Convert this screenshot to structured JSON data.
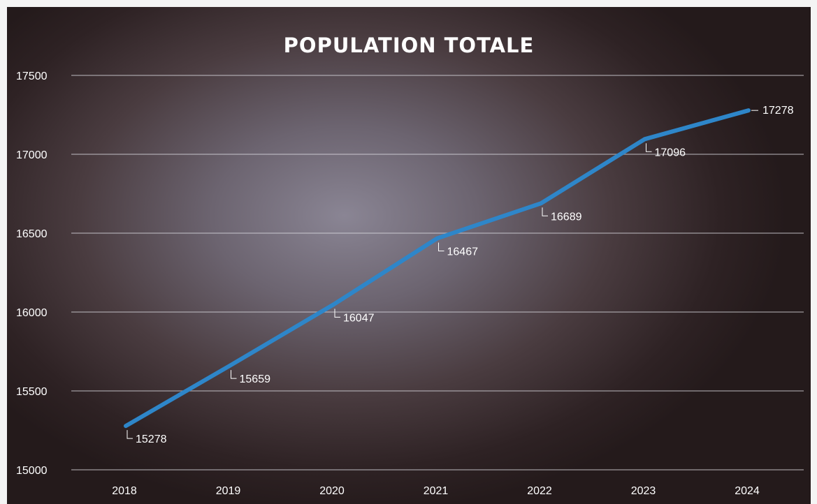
{
  "chart_data": {
    "type": "line",
    "title": "POPULATION TOTALE",
    "xlabel": "",
    "ylabel": "",
    "categories": [
      "2018",
      "2019",
      "2020",
      "2021",
      "2022",
      "2023",
      "2024"
    ],
    "series": [
      {
        "values": [
          15278,
          15659,
          16047,
          16467,
          16689,
          17096,
          17278
        ]
      }
    ],
    "ylim": [
      15000,
      17500
    ],
    "yticks": [
      15000,
      15500,
      16000,
      16500,
      17000,
      17500
    ],
    "grid": true,
    "legend": "none",
    "data_labels": true,
    "line_color": "#2e86c9",
    "text_color": "#ffffff"
  }
}
